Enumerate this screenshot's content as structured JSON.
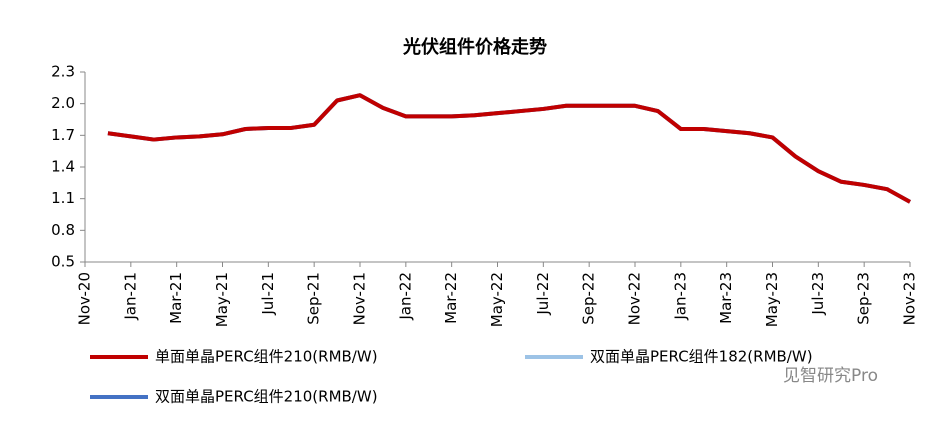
{
  "chart_data": {
    "type": "line",
    "title": "光伏组件价格走势",
    "categories": [
      "Nov-20",
      null,
      "Jan-21",
      null,
      "Mar-21",
      null,
      "May-21",
      null,
      "Jul-21",
      null,
      "Sep-21",
      null,
      "Nov-21",
      null,
      "Jan-22",
      null,
      "Mar-22",
      null,
      "May-22",
      null,
      "Jul-22",
      null,
      "Sep-22",
      null,
      "Nov-22",
      null,
      "Jan-23",
      null,
      "Mar-23",
      null,
      "May-23",
      null,
      "Jul-23",
      null,
      "Sep-23",
      null,
      "Nov-23"
    ],
    "series": [
      {
        "name": "双面单晶PERC组件182(RMB/W)",
        "color": "#9dc3e6",
        "values": [
          null,
          1.72,
          1.69,
          1.66,
          1.68,
          1.69,
          1.71,
          1.76,
          1.77,
          1.77,
          1.8,
          2.03,
          2.08,
          1.96,
          1.88,
          1.88,
          1.88,
          1.89,
          1.91,
          1.93,
          1.95,
          1.98,
          1.98,
          1.98,
          1.98,
          1.93,
          1.76,
          1.76,
          1.74,
          1.72,
          1.68,
          1.5,
          1.36,
          1.26,
          1.23,
          1.19,
          1.07
        ]
      },
      {
        "name": "双面单晶PERC组件210(RMB/W)",
        "color": "#4472c4",
        "values": [
          null,
          1.72,
          1.69,
          1.66,
          1.68,
          1.69,
          1.71,
          1.76,
          1.77,
          1.77,
          1.8,
          2.03,
          2.08,
          1.96,
          1.88,
          1.88,
          1.88,
          1.89,
          1.91,
          1.93,
          1.95,
          1.98,
          1.98,
          1.98,
          1.98,
          1.93,
          1.76,
          1.76,
          1.74,
          1.72,
          1.68,
          1.5,
          1.36,
          1.26,
          1.23,
          1.19,
          1.07
        ]
      },
      {
        "name": "单面单晶PERC组件210(RMB/W)",
        "color": "#c00000",
        "values": [
          null,
          1.72,
          1.69,
          1.66,
          1.68,
          1.69,
          1.71,
          1.76,
          1.77,
          1.77,
          1.8,
          2.03,
          2.08,
          1.96,
          1.88,
          1.88,
          1.88,
          1.89,
          1.91,
          1.93,
          1.95,
          1.98,
          1.98,
          1.98,
          1.98,
          1.93,
          1.76,
          1.76,
          1.74,
          1.72,
          1.68,
          1.5,
          1.36,
          1.26,
          1.23,
          1.19,
          1.07
        ]
      }
    ],
    "ylim": [
      0.5,
      2.3
    ],
    "yticks": [
      0.5,
      0.8,
      1.1,
      1.4,
      1.7,
      2.0,
      2.3
    ],
    "ytick_labels": [
      "0.5",
      "0.8",
      "1.1",
      "1.4",
      "1.7",
      "2.0",
      "2.3"
    ],
    "watermark": "见智研究Pro"
  }
}
